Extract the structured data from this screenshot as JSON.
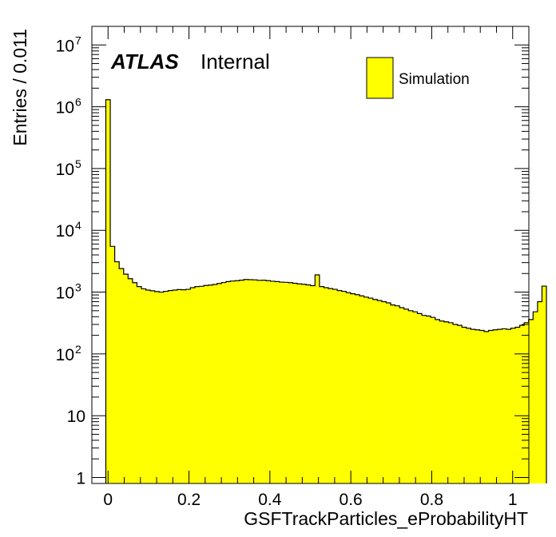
{
  "chart_data": {
    "type": "bar",
    "subtype": "histogram",
    "x_label": "GSFTrackParticles_eProbabilityHT",
    "y_label": "Entries / 0.011",
    "experiment_label": "ATLAS",
    "status_label": "Internal",
    "legend": [
      {
        "name": "Simulation",
        "color": "#ffff00"
      }
    ],
    "legend_placement": "top-right",
    "fill_color": "#ffff00",
    "line_color": "#000000",
    "x_range": [
      -0.04,
      1.04
    ],
    "y_scale": "log",
    "y_range": [
      0.8,
      20000000
    ],
    "x_ticks": [
      {
        "value": 0,
        "label": "0"
      },
      {
        "value": 0.2,
        "label": "0.2"
      },
      {
        "value": 0.4,
        "label": "0.4"
      },
      {
        "value": 0.6,
        "label": "0.6"
      },
      {
        "value": 0.8,
        "label": "0.8"
      },
      {
        "value": 1,
        "label": "1"
      }
    ],
    "y_ticks": [
      {
        "value": 1,
        "base": "1",
        "exp": ""
      },
      {
        "value": 10,
        "base": "10",
        "exp": ""
      },
      {
        "value": 100,
        "base": "10",
        "exp": "2"
      },
      {
        "value": 1000,
        "base": "10",
        "exp": "3"
      },
      {
        "value": 10000,
        "base": "10",
        "exp": "4"
      },
      {
        "value": 100000,
        "base": "10",
        "exp": "5"
      },
      {
        "value": 1000000,
        "base": "10",
        "exp": "6"
      },
      {
        "value": 10000000,
        "base": "10",
        "exp": "7"
      }
    ],
    "bin_width": 0.011,
    "x_start": -0.0055,
    "values": [
      1300000,
      5500,
      3100,
      2400,
      1950,
      1650,
      1420,
      1230,
      1130,
      1080,
      1050,
      1020,
      1000,
      1030,
      1060,
      1080,
      1100,
      1090,
      1110,
      1180,
      1230,
      1240,
      1280,
      1300,
      1330,
      1380,
      1430,
      1480,
      1510,
      1530,
      1560,
      1600,
      1590,
      1580,
      1550,
      1560,
      1530,
      1500,
      1480,
      1450,
      1440,
      1420,
      1390,
      1360,
      1340,
      1310,
      1270,
      1900,
      1230,
      1180,
      1140,
      1110,
      1060,
      1030,
      980,
      940,
      910,
      870,
      830,
      800,
      760,
      730,
      700,
      670,
      620,
      600,
      560,
      530,
      500,
      480,
      450,
      420,
      410,
      390,
      360,
      340,
      330,
      320,
      300,
      290,
      270,
      260,
      250,
      245,
      240,
      230,
      240,
      245,
      250,
      255,
      250,
      260,
      270,
      290,
      320,
      360,
      480,
      700,
      1250
    ]
  }
}
